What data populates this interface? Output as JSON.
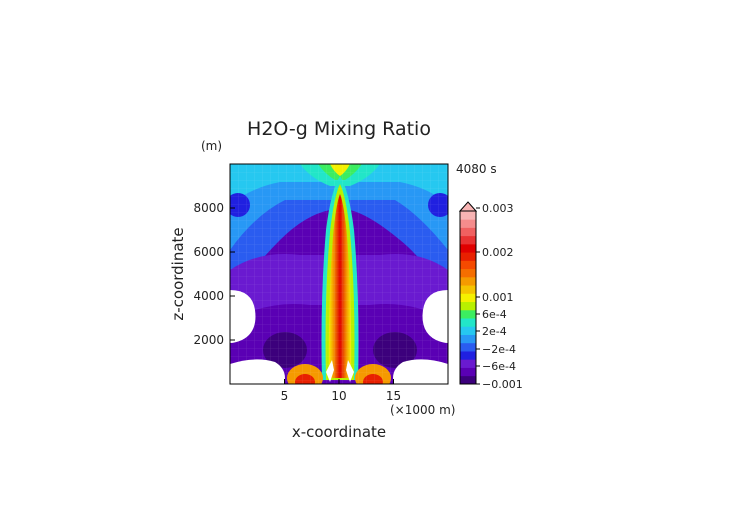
{
  "chart_data": {
    "type": "heatmap",
    "title": "H2O-g Mixing Ratio",
    "xlabel": "x-coordinate",
    "ylabel": "z-coordinate",
    "x_unit": "(×1000 m)",
    "y_unit": "(m)",
    "time_label": "4080 s",
    "xlim": [
      0,
      20
    ],
    "ylim": [
      0,
      10000
    ],
    "x_ticks": [
      "5",
      "10",
      "15"
    ],
    "y_ticks": [
      "2000",
      "4000",
      "6000",
      "8000"
    ],
    "colorbar": {
      "ticks": [
        "0.003",
        "0.002",
        "0.001",
        "6e-4",
        "2e-4",
        "−2e-4",
        "−6e-4",
        "−0.001"
      ],
      "colors": [
        "#3c007c",
        "#5a00b4",
        "#6a1ad0",
        "#2020e0",
        "#2a5cf0",
        "#2898f5",
        "#26c8f0",
        "#22e6c8",
        "#3ced60",
        "#b8f000",
        "#f5f000",
        "#f5c400",
        "#f59a00",
        "#f56e00",
        "#f54a00",
        "#e82000",
        "#e00000",
        "#e83232",
        "#f06060",
        "#f58c8c",
        "#f8b4b4"
      ]
    }
  }
}
